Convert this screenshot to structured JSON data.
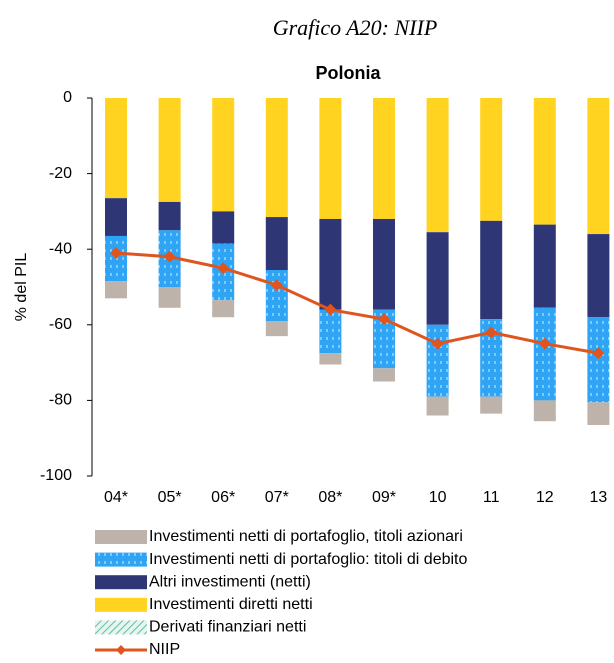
{
  "chart_data": {
    "type": "bar",
    "title": "Grafico A20: NIIP",
    "subtitle": "Polonia",
    "y_label": "% del PIL",
    "categories": [
      "04*",
      "05*",
      "06*",
      "07*",
      "08*",
      "09*",
      "10",
      "11",
      "12",
      "13"
    ],
    "ylim": [
      -100,
      0
    ],
    "yticks": [
      0,
      -20,
      -40,
      -60,
      -80,
      -100
    ],
    "stacked": true,
    "series": [
      {
        "name": "Investimenti netti di portafoglio, titoli azionari",
        "color": "#bdb3aa",
        "values": [
          -4.5,
          -5.5,
          -4.5,
          -4,
          -3,
          -3.5,
          -5,
          -4.5,
          -5.5,
          -6
        ]
      },
      {
        "name": "Investimenti netti di portafoglio: titoli di debito",
        "color": "#2fa4f5",
        "pattern": "dashes",
        "values": [
          -12,
          -15,
          -15,
          -13.5,
          -11.5,
          -15.5,
          -19,
          -20.5,
          -24.5,
          -22.5
        ]
      },
      {
        "name": "Altri investimenti (netti)",
        "color": "#2e3676",
        "values": [
          -10,
          -7.5,
          -8.5,
          -14,
          -24,
          -24,
          -24.5,
          -26,
          -22,
          -22
        ]
      },
      {
        "name": "Investimenti diretti netti",
        "color": "#ffd320",
        "values": [
          -26.5,
          -27.5,
          -30,
          -31.5,
          -32,
          -32,
          -35.5,
          -32.5,
          -33.5,
          -36
        ]
      },
      {
        "name": "Derivati finanziari netti",
        "color": "#5fbfa0",
        "pattern": "hatch",
        "values": [
          0,
          0,
          0,
          0,
          0,
          0,
          0,
          0,
          0,
          0
        ]
      },
      {
        "name": "NIIP",
        "type": "line",
        "color": "#e0541e",
        "values": [
          -41,
          -42,
          -45,
          -49.5,
          -56,
          -58.5,
          -65,
          -62,
          -65,
          -67.5
        ]
      }
    ]
  }
}
